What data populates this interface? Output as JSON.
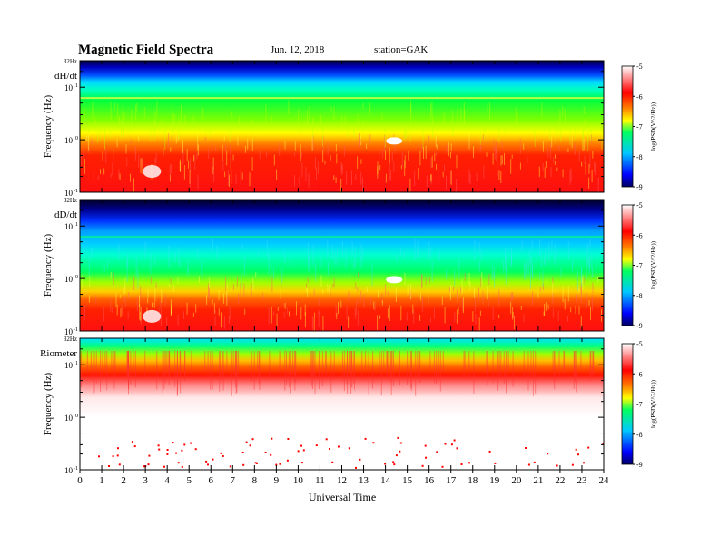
{
  "header": {
    "title": "Magnetic Field Spectra",
    "date": "Jun. 12, 2018",
    "station": "station=GAK"
  },
  "chart_data": {
    "type": "heatmap",
    "xlabel": "Universal Time",
    "xlim": [
      0,
      24
    ],
    "x_ticks": [
      "0",
      "1",
      "2",
      "3",
      "4",
      "5",
      "6",
      "7",
      "8",
      "9",
      "10",
      "11",
      "12",
      "13",
      "14",
      "15",
      "16",
      "17",
      "18",
      "19",
      "20",
      "21",
      "22",
      "23",
      "24"
    ],
    "y_scale": "log",
    "colorbar": {
      "label": "log(PSD(V^2/Hz))",
      "range": [
        -9,
        -5
      ],
      "ticks": [
        "-5",
        "-6",
        "-7",
        "-8",
        "-9"
      ],
      "colors": [
        "#000060",
        "#0000ff",
        "#00c8ff",
        "#00ff60",
        "#ffff00",
        "#ff8000",
        "#ff0000",
        "#ffffff"
      ]
    },
    "panels": [
      {
        "name": "dH/dt",
        "ylabel": "Frequency (Hz)",
        "ytick_top": "32Hz",
        "yticks": [
          "10^1",
          "10^0",
          "10^-1"
        ],
        "ylim_hz": [
          0.1,
          32
        ]
      },
      {
        "name": "dD/dt",
        "ylabel": "Frequency (Hz)",
        "ytick_top": "32Hz",
        "yticks": [
          "10^1",
          "10^0",
          "10^-1"
        ],
        "ylim_hz": [
          0.1,
          32
        ]
      },
      {
        "name": "Riometer",
        "ylabel": "Frequency (Hz)",
        "ytick_top": "32Hz",
        "yticks": [
          "10^1",
          "10^0",
          "10^-1"
        ],
        "ylim_hz": [
          0.1,
          32
        ]
      }
    ]
  }
}
